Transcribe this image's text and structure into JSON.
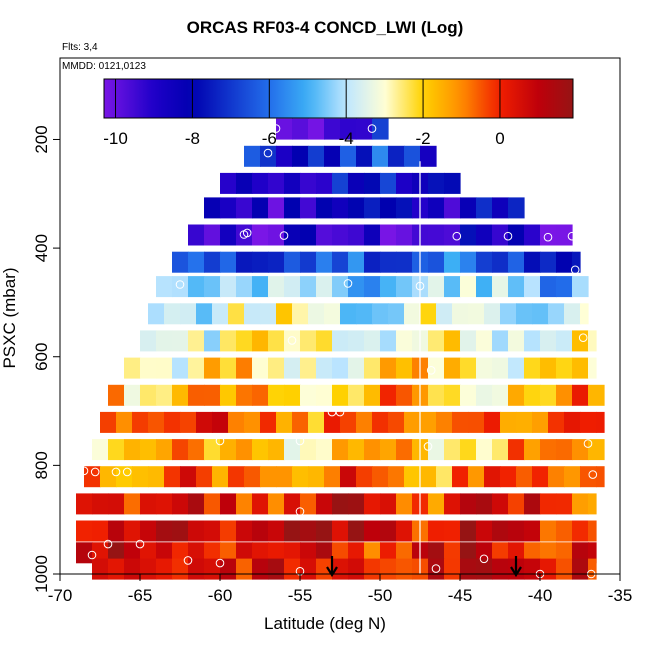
{
  "chart_data": {
    "type": "heatmap",
    "title": "ORCAS RF03-4 CONCD_LWI (Log)",
    "flights_note": "Flts: 3,4",
    "dates_note": "MMDD: 0121,0123",
    "xlabel": "Latitude (deg N)",
    "ylabel": "PSXC (mbar)",
    "xlim": [
      -70,
      -35
    ],
    "ylim": [
      1000,
      50
    ],
    "x_ticks": [
      -70,
      -65,
      -60,
      -55,
      -50,
      -45,
      -40,
      -35
    ],
    "x_tick_labels": [
      "-70",
      "-65",
      "-60",
      "-55",
      "-50",
      "-45",
      "-40",
      "-35"
    ],
    "y_ticks": [
      200,
      400,
      600,
      800,
      1000
    ],
    "y_tick_labels": [
      "200",
      "400",
      "600",
      "800",
      "1000"
    ],
    "colorbar": {
      "range": [
        -10.3,
        1.9
      ],
      "ticks": [
        -10,
        -8,
        -6,
        -4,
        -2,
        0
      ],
      "tick_labels": [
        "-10",
        "-8",
        "-6",
        "-4",
        "-2",
        "0"
      ]
    },
    "divider_latitude": -47.5,
    "arrow_latitudes": [
      -53,
      -41.5
    ],
    "rows": [
      {
        "p": 180,
        "x0": -56.5,
        "x1": -49.5,
        "v": -8.5
      },
      {
        "p": 230,
        "x0": -58.5,
        "x1": -46.5,
        "v": -7.3
      },
      {
        "p": 280,
        "x0": -60,
        "x1": -45,
        "v": -8.2
      },
      {
        "p": 325,
        "x0": -61,
        "x1": -41,
        "v": -8.5
      },
      {
        "p": 375,
        "x0": -62,
        "x1": -38,
        "v": -9.2
      },
      {
        "p": 425,
        "x0": -63,
        "x1": -37.5,
        "v": -6.5
      },
      {
        "p": 470,
        "x0": -64,
        "x1": -37,
        "v": -4.5
      },
      {
        "p": 520,
        "x0": -64.5,
        "x1": -37,
        "v": -3.3
      },
      {
        "p": 570,
        "x0": -65,
        "x1": -36.5,
        "v": -3.0
      },
      {
        "p": 620,
        "x0": -66,
        "x1": -36.5,
        "v": -2.5
      },
      {
        "p": 670,
        "x0": -67,
        "x1": -36,
        "v": -1.6
      },
      {
        "p": 720,
        "x0": -67.5,
        "x1": -36,
        "v": -0.7
      },
      {
        "p": 770,
        "x0": -68,
        "x1": -36,
        "v": -1.8
      },
      {
        "p": 820,
        "x0": -68.5,
        "x1": -36,
        "v": -0.8
      },
      {
        "p": 870,
        "x0": -69,
        "x1": -36.5,
        "v": 0.2
      },
      {
        "p": 920,
        "x0": -69,
        "x1": -36.5,
        "v": 0.6
      },
      {
        "p": 960,
        "x0": -69,
        "x1": -36.5,
        "v": 0.4
      },
      {
        "p": 990,
        "x0": -68,
        "x1": -36.5,
        "v": 0.3
      }
    ],
    "points": [
      [
        -56.5,
        180
      ],
      [
        -50.5,
        180
      ],
      [
        -57,
        225
      ],
      [
        -64,
        375
      ],
      [
        -58.5,
        375
      ],
      [
        -58.3,
        372
      ],
      [
        -56,
        377
      ],
      [
        -45.2,
        378
      ],
      [
        -42,
        378
      ],
      [
        -39.5,
        380
      ],
      [
        -38,
        378
      ],
      [
        -37.8,
        440
      ],
      [
        -62.5,
        467
      ],
      [
        -52,
        465
      ],
      [
        -47.5,
        470
      ],
      [
        -55.5,
        570
      ],
      [
        -37.3,
        565
      ],
      [
        -46.8,
        625
      ],
      [
        -53,
        702
      ],
      [
        -52.5,
        702
      ],
      [
        -60,
        755
      ],
      [
        -55,
        755
      ],
      [
        -47,
        765
      ],
      [
        -37,
        760
      ],
      [
        -69,
        775
      ],
      [
        -68.5,
        810
      ],
      [
        -67.8,
        812
      ],
      [
        -66.5,
        812
      ],
      [
        -65.8,
        812
      ],
      [
        -36.7,
        817
      ],
      [
        -55,
        885
      ],
      [
        -67,
        945
      ],
      [
        -65,
        945
      ],
      [
        -69.3,
        960
      ],
      [
        -68,
        965
      ],
      [
        -62,
        975
      ],
      [
        -60,
        980
      ],
      [
        -55,
        995
      ],
      [
        -46.5,
        990
      ],
      [
        -43.5,
        972
      ],
      [
        -40,
        1000
      ],
      [
        -36.8,
        1000
      ]
    ]
  }
}
